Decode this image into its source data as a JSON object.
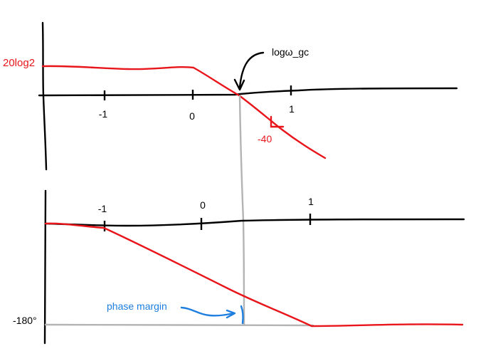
{
  "colors": {
    "axis": "#000000",
    "curve": "#e8151b",
    "guide": "#b4b4b4",
    "annotation": "#1e7fe0"
  },
  "magnitude_plot": {
    "tick_labels": [
      "-1",
      "0",
      "1"
    ],
    "y_label": "20log2",
    "slope_label": "-40",
    "crossover_label": "logω_gc"
  },
  "phase_plot": {
    "tick_labels": [
      "-1",
      "0",
      "1"
    ],
    "y_label": "-180°",
    "margin_label": "phase margin"
  }
}
